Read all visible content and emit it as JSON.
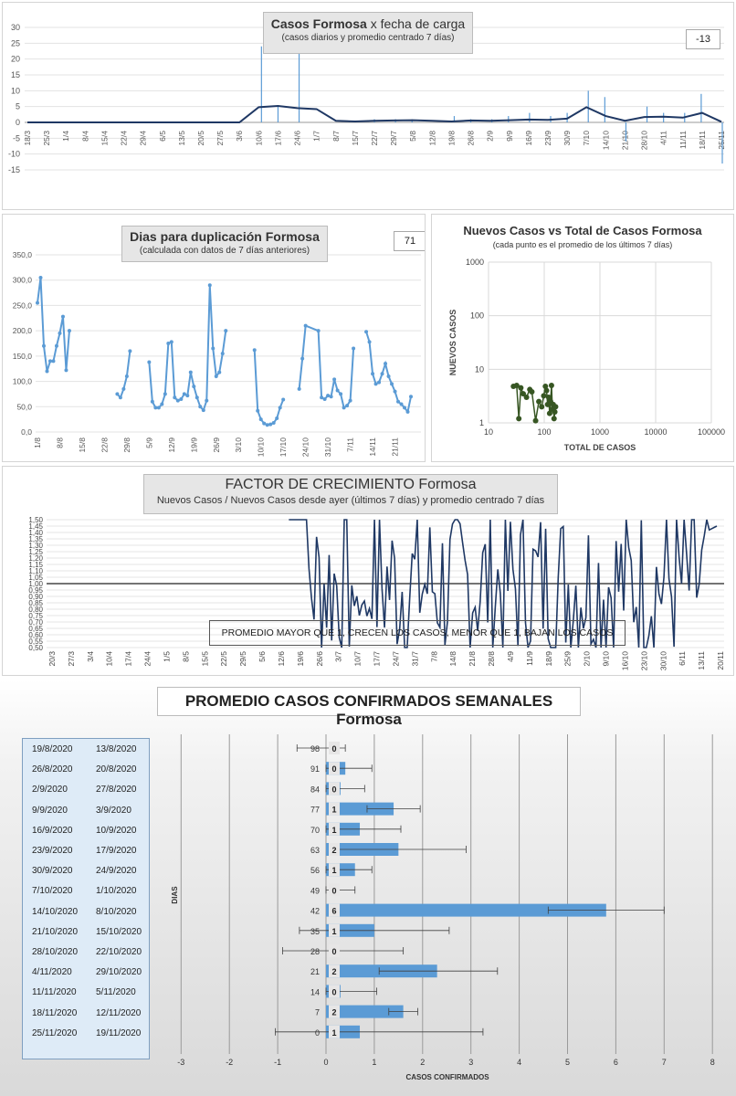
{
  "chart_data": [
    {
      "type": "line",
      "title": "Casos Formosa",
      "title_suffix": "x fecha de carga",
      "subtitle": "(casos diarios y promedio  centrado 7 días)",
      "value_box": "-13",
      "ylim": [
        -15,
        30
      ],
      "yticks": [
        "30",
        "25",
        "20",
        "15",
        "10",
        "5",
        "0",
        "-5",
        "-10",
        "-15"
      ],
      "xticks": [
        "18/3",
        "25/3",
        "1/4",
        "8/4",
        "15/4",
        "22/4",
        "29/4",
        "6/5",
        "13/5",
        "20/5",
        "27/5",
        "3/6",
        "10/6",
        "17/6",
        "24/6",
        "1/7",
        "8/7",
        "15/7",
        "22/7",
        "29/7",
        "5/8",
        "12/8",
        "19/8",
        "26/8",
        "2/9",
        "9/9",
        "16/9",
        "23/9",
        "30/9",
        "7/10",
        "14/10",
        "21/10",
        "28/10",
        "4/11",
        "11/11",
        "18/11",
        "25/11"
      ],
      "series": [
        {
          "kind": "bar",
          "values_by_week": [
            0,
            0,
            0,
            0,
            0,
            0,
            0,
            0,
            0,
            0,
            0,
            0,
            24,
            5,
            23,
            0,
            0,
            0,
            1,
            1,
            1,
            0,
            2,
            1,
            1,
            2,
            3,
            2,
            3,
            10,
            8,
            -6,
            5,
            3,
            3,
            9,
            -13
          ]
        },
        {
          "kind": "line",
          "values_by_week": [
            0,
            0,
            0,
            0,
            0,
            0,
            0,
            0,
            0,
            0,
            0,
            0,
            4.8,
            5.2,
            4.5,
            4.2,
            0.5,
            0.3,
            0.5,
            0.6,
            0.7,
            0.5,
            0.3,
            0.6,
            0.5,
            0.7,
            0.9,
            0.8,
            1.2,
            4.8,
            2.0,
            0.5,
            1.7,
            1.8,
            1.5,
            3.0,
            0.2
          ]
        }
      ]
    },
    {
      "type": "line",
      "title": "Dias para duplicación Formosa",
      "subtitle": "(calculada con datos de 7 días anteriores)",
      "value_box": "71",
      "ylim": [
        0,
        350
      ],
      "yticks": [
        "350,0",
        "300,0",
        "250,0",
        "200,0",
        "150,0",
        "100,0",
        "50,0",
        "0,0"
      ],
      "xticks": [
        "1/8",
        "8/8",
        "15/8",
        "22/8",
        "29/8",
        "5/9",
        "12/9",
        "19/9",
        "26/9",
        "3/10",
        "10/10",
        "17/10",
        "24/10",
        "31/10",
        "7/11",
        "14/11",
        "21/11"
      ],
      "x_start": "1/8",
      "segments": [
        [
          [
            0,
            255
          ],
          [
            1,
            305
          ],
          [
            2,
            170
          ],
          [
            3,
            120
          ],
          [
            4,
            140
          ],
          [
            5,
            140
          ],
          [
            6,
            170
          ],
          [
            7,
            195
          ],
          [
            8,
            228
          ],
          [
            9,
            122
          ],
          [
            10,
            200
          ]
        ],
        [
          [
            25,
            75
          ],
          [
            26,
            68
          ],
          [
            27,
            85
          ],
          [
            28,
            110
          ],
          [
            29,
            160
          ]
        ],
        [
          [
            35,
            138
          ],
          [
            36,
            60
          ],
          [
            37,
            48
          ],
          [
            38,
            48
          ],
          [
            39,
            55
          ],
          [
            40,
            75
          ],
          [
            41,
            175
          ],
          [
            42,
            178
          ],
          [
            43,
            68
          ],
          [
            44,
            62
          ],
          [
            45,
            65
          ],
          [
            46,
            75
          ],
          [
            47,
            72
          ],
          [
            48,
            118
          ],
          [
            49,
            90
          ],
          [
            50,
            68
          ],
          [
            51,
            50
          ],
          [
            52,
            43
          ],
          [
            53,
            62
          ],
          [
            54,
            290
          ],
          [
            55,
            165
          ],
          [
            56,
            110
          ],
          [
            57,
            118
          ],
          [
            58,
            155
          ],
          [
            59,
            200
          ]
        ],
        [
          [
            68,
            162
          ],
          [
            69,
            42
          ],
          [
            70,
            25
          ],
          [
            71,
            17
          ],
          [
            72,
            14
          ],
          [
            73,
            15
          ],
          [
            74,
            18
          ],
          [
            75,
            27
          ],
          [
            76,
            48
          ],
          [
            77,
            64
          ]
        ],
        [
          [
            82,
            85
          ],
          [
            83,
            145
          ],
          [
            84,
            210
          ],
          [
            88,
            200
          ],
          [
            89,
            68
          ],
          [
            90,
            65
          ],
          [
            91,
            72
          ],
          [
            92,
            70
          ],
          [
            93,
            104
          ],
          [
            94,
            82
          ],
          [
            95,
            75
          ],
          [
            96,
            48
          ],
          [
            97,
            52
          ],
          [
            98,
            62
          ],
          [
            99,
            165
          ]
        ],
        [
          [
            103,
            198
          ],
          [
            104,
            178
          ],
          [
            105,
            115
          ],
          [
            106,
            95
          ],
          [
            107,
            98
          ],
          [
            108,
            115
          ],
          [
            109,
            135
          ],
          [
            110,
            110
          ],
          [
            111,
            95
          ],
          [
            112,
            80
          ],
          [
            113,
            60
          ],
          [
            114,
            55
          ],
          [
            115,
            48
          ],
          [
            116,
            40
          ],
          [
            117,
            70
          ]
        ]
      ]
    },
    {
      "type": "scatter",
      "title": "Nuevos Casos vs Total de Casos Formosa",
      "subtitle": "(cada punto es el promedio de los últimos 7 días)",
      "xlabel": "TOTAL DE CASOS",
      "ylabel": "NUEVOS CASOS",
      "xscale": "log",
      "yscale": "log",
      "xlim": [
        10,
        100000
      ],
      "ylim": [
        1,
        1000
      ],
      "xticks": [
        "10",
        "100",
        "1000",
        "10000",
        "100000"
      ],
      "yticks": [
        "1000",
        "100",
        "10",
        "1"
      ],
      "points": [
        [
          28,
          4.8
        ],
        [
          32,
          5.0
        ],
        [
          35,
          1.2
        ],
        [
          38,
          4.5
        ],
        [
          42,
          3.5
        ],
        [
          48,
          3.0
        ],
        [
          55,
          4.2
        ],
        [
          60,
          3.8
        ],
        [
          70,
          1.1
        ],
        [
          80,
          2.5
        ],
        [
          90,
          2.0
        ],
        [
          98,
          3.2
        ],
        [
          105,
          4.8
        ],
        [
          110,
          4.0
        ],
        [
          115,
          2.2
        ],
        [
          120,
          3.0
        ],
        [
          125,
          1.5
        ],
        [
          130,
          2.5
        ],
        [
          135,
          5.0
        ],
        [
          140,
          1.8
        ],
        [
          145,
          2.2
        ],
        [
          150,
          1.2
        ],
        [
          155,
          1.6
        ],
        [
          160,
          2.0
        ]
      ],
      "color": "#375623"
    },
    {
      "type": "line",
      "title": "FACTOR DE CRECIMIENTO",
      "title_suffix": "Formosa",
      "subtitle": "Nuevos Casos  / Nuevos Casos desde ayer (últimos 7 días) y promedio  centrado 7 días",
      "ylim": [
        0.5,
        1.5
      ],
      "yticks": [
        "1,50",
        "1,45",
        "1,40",
        "1,35",
        "1,30",
        "1,25",
        "1,20",
        "1,15",
        "1,10",
        "1,05",
        "1,00",
        "0,95",
        "0,90",
        "0,85",
        "0,80",
        "0,75",
        "0,70",
        "0,65",
        "0,60",
        "0,55",
        "0,50"
      ],
      "xticks": [
        "20/3",
        "27/3",
        "3/4",
        "10/4",
        "17/4",
        "24/4",
        "1/5",
        "8/5",
        "15/5",
        "22/5",
        "29/5",
        "5/6",
        "12/6",
        "19/6",
        "26/6",
        "3/7",
        "10/7",
        "17/7",
        "24/7",
        "31/7",
        "7/8",
        "14/8",
        "21/8",
        "28/8",
        "4/9",
        "11/9",
        "18/9",
        "25/9",
        "2/10",
        "9/10",
        "16/10",
        "23/10",
        "30/10",
        "6/11",
        "13/11",
        "20/11"
      ],
      "annotation": "PROMEDIO MAYOR QUE 1, CRECEN LOS CASOS, MENOR QUE 1, BAJAN LOS CASOS",
      "reference_line": 1.0
    },
    {
      "type": "bar",
      "title": "PROMEDIO CASOS CONFIRMADOS SEMANALES Formosa",
      "xlabel": "CASOS CONFIRMADOS",
      "ylabel": "DIAS",
      "xlim": [
        -3,
        8
      ],
      "xticks": [
        "-3",
        "-2",
        "-1",
        "0",
        "1",
        "2",
        "3",
        "4",
        "5",
        "6",
        "7",
        "8"
      ],
      "rows": [
        {
          "end": "19/8/2020",
          "start": "13/8/2020",
          "days": "98",
          "label": "0",
          "value": 0.0,
          "err": [
            0.6,
            0.4
          ]
        },
        {
          "end": "26/8/2020",
          "start": "20/8/2020",
          "days": "91",
          "label": "0",
          "value": 0.4,
          "err": [
            0.4,
            0.55
          ]
        },
        {
          "end": "2/9/2020",
          "start": "27/8/2020",
          "days": "84",
          "label": "0",
          "value": 0.3,
          "err": [
            0.3,
            0.5
          ]
        },
        {
          "end": "9/9/2020",
          "start": "3/9/2020",
          "days": "77",
          "label": "1",
          "value": 1.4,
          "err": [
            0.55,
            0.55
          ]
        },
        {
          "end": "16/9/2020",
          "start": "10/9/2020",
          "days": "70",
          "label": "1",
          "value": 0.7,
          "err": [
            0.7,
            0.85
          ]
        },
        {
          "end": "23/9/2020",
          "start": "17/9/2020",
          "days": "63",
          "label": "2",
          "value": 1.5,
          "err": [
            1.4,
            1.4
          ]
        },
        {
          "end": "30/9/2020",
          "start": "24/9/2020",
          "days": "56",
          "label": "1",
          "value": 0.6,
          "err": [
            0.6,
            0.35
          ]
        },
        {
          "end": "7/10/2020",
          "start": "1/10/2020",
          "days": "49",
          "label": "0",
          "value": 0.0,
          "err": [
            0.0,
            0.6
          ]
        },
        {
          "end": "14/10/2020",
          "start": "8/10/2020",
          "days": "42",
          "label": "6",
          "value": 5.8,
          "err": [
            1.2,
            1.2
          ]
        },
        {
          "end": "21/10/2020",
          "start": "15/10/2020",
          "days": "35",
          "label": "1",
          "value": 1.0,
          "err": [
            1.55,
            1.55
          ]
        },
        {
          "end": "28/10/2020",
          "start": "22/10/2020",
          "days": "28",
          "label": "0",
          "value": 0.0,
          "err": [
            0.9,
            1.6
          ]
        },
        {
          "end": "4/11/2020",
          "start": "29/10/2020",
          "days": "21",
          "label": "2",
          "value": 2.3,
          "err": [
            1.2,
            1.25
          ]
        },
        {
          "end": "11/11/2020",
          "start": "5/11/2020",
          "days": "14",
          "label": "0",
          "value": 0.3,
          "err": [
            0.3,
            0.75
          ]
        },
        {
          "end": "18/11/2020",
          "start": "12/11/2020",
          "days": "7",
          "label": "2",
          "value": 1.6,
          "err": [
            0.3,
            0.3
          ]
        },
        {
          "end": "25/11/2020",
          "start": "19/11/2020",
          "days": "0",
          "label": "1",
          "value": 0.7,
          "err": [
            1.75,
            2.55
          ]
        }
      ]
    }
  ],
  "colors": {
    "bar_blue": "#5b9bd5",
    "line_navy": "#1f3864",
    "line_lightblue": "#5b9bd5",
    "scatter_green": "#375623",
    "date_panel_bg": "#deebf7"
  }
}
